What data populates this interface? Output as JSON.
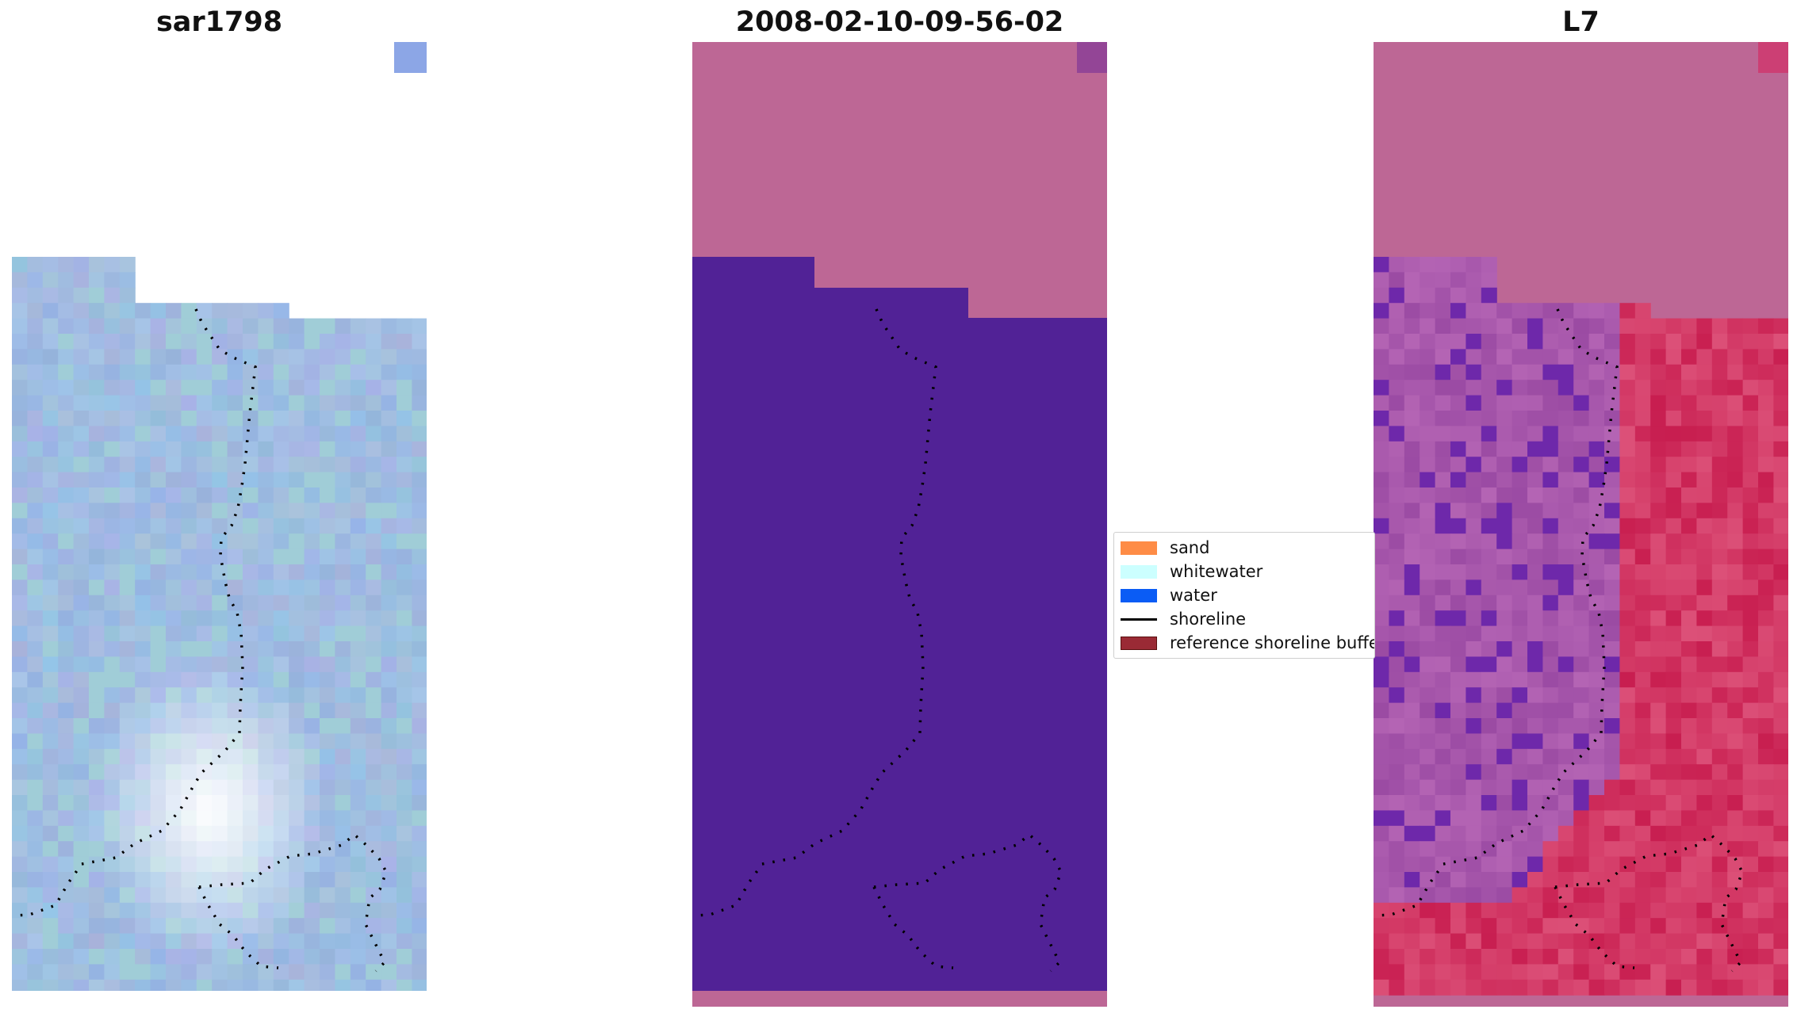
{
  "panels": [
    {
      "title": "sar1798",
      "image": "true-colour satellite image"
    },
    {
      "title": "2008-02-10-09-56-02",
      "image": "classified image"
    },
    {
      "title": "L7",
      "image": "false-colour index image"
    }
  ],
  "legend": [
    {
      "label": "sand",
      "color": "#fe8c46"
    },
    {
      "label": "whitewater",
      "color": "#ccffff"
    },
    {
      "label": "water",
      "color": "#0a5cf5"
    },
    {
      "label": "shoreline",
      "color": "#000000",
      "kind": "line"
    },
    {
      "label": "reference shoreline buffer",
      "color": "#9a2a35",
      "edge": "#5a1010"
    }
  ],
  "colors": {
    "classified_water": "#512296",
    "classified_nodata": "#bd6795",
    "index_background": "#bd6795",
    "index_high": "#cc1750",
    "index_low": "#9a4aa0",
    "rgb_base": "#9bb7dc"
  }
}
